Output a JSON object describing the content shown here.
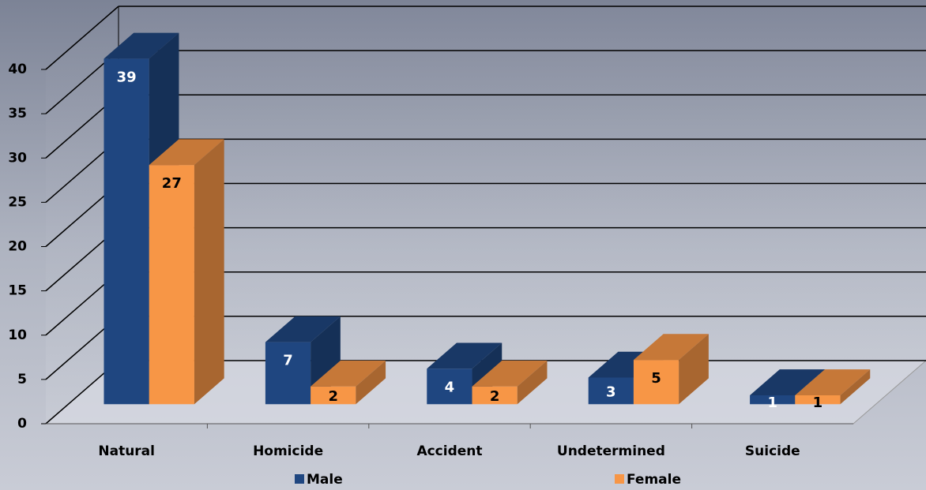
{
  "chart_data": {
    "type": "bar3d",
    "categories": [
      "Natural",
      "Homicide",
      "Accident",
      "Undetermined",
      "Suicide"
    ],
    "series": [
      {
        "name": "Male",
        "color": "#1f4680",
        "values": [
          39,
          7,
          4,
          3,
          1
        ]
      },
      {
        "name": "Female",
        "color": "#f79646",
        "values": [
          27,
          2,
          2,
          5,
          1
        ]
      }
    ],
    "ylim": [
      0,
      40
    ],
    "yticks": [
      0,
      5,
      10,
      15,
      20,
      25,
      30,
      35,
      40
    ],
    "grid": true,
    "legend": "bottom"
  }
}
